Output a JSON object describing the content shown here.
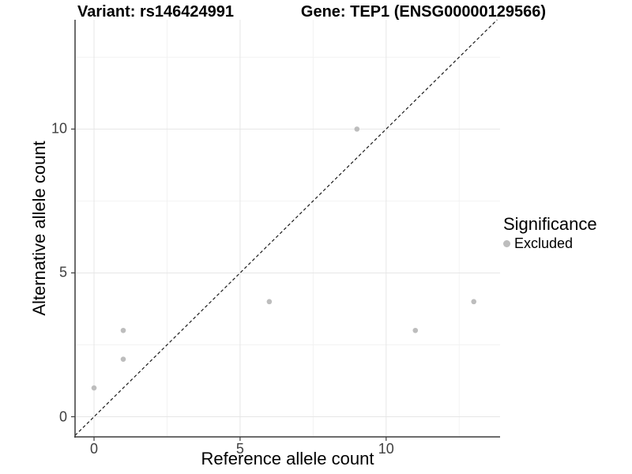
{
  "chart_data": {
    "type": "scatter",
    "title_left": "Variant: rs146424991",
    "title_right": "Gene: TEP1 (ENSG00000129566)",
    "xlabel": "Reference allele count",
    "ylabel": "Alternative allele count",
    "xlim": [
      -0.65,
      13.9
    ],
    "ylim": [
      -0.7,
      13.8
    ],
    "x_ticks": [
      0,
      5,
      10
    ],
    "x_tick_labels": [
      "0",
      "5",
      "10"
    ],
    "y_ticks": [
      0,
      5,
      10
    ],
    "y_tick_labels": [
      "0",
      "5",
      "10"
    ],
    "x_minor_ticks": [
      2.5,
      7.5,
      12.5
    ],
    "y_minor_ticks": [
      2.5,
      7.5,
      12.5
    ],
    "grid": true,
    "series": [
      {
        "name": "Excluded",
        "color": "#bdbdbd",
        "points": [
          [
            0,
            1
          ],
          [
            1,
            2
          ],
          [
            1,
            3
          ],
          [
            6,
            4
          ],
          [
            9,
            10
          ],
          [
            11,
            3
          ],
          [
            13,
            4
          ]
        ]
      }
    ],
    "reference_line": {
      "type": "identity",
      "style": "dashed",
      "color": "#1a1a1a"
    },
    "legend": {
      "position": "right",
      "title": "Significance",
      "items": [
        {
          "label": "Excluded",
          "color": "#bdbdbd"
        }
      ]
    },
    "colors": {
      "background": "#ffffff",
      "grid_major": "#e6e6e6",
      "grid_minor": "#f2f2f2",
      "axis_line": "#3c3c3c",
      "point": "#bdbdbd",
      "tick_text": "#404040"
    }
  }
}
